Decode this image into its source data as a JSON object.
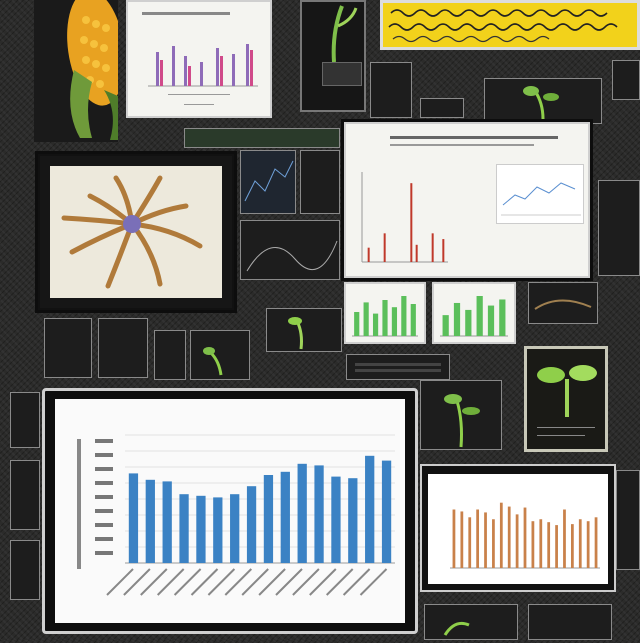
{
  "screen": {
    "background": "#2b2b2a",
    "accent_green": "#5bbf5b",
    "accent_blue": "#3b82c4",
    "accent_orange": "#c9814a",
    "accent_red": "#c0392b",
    "accent_yellow": "#f2d21b"
  },
  "title_card": {
    "title": ""
  },
  "main_chart": {
    "title": "",
    "xlabel": ""
  },
  "chart_data": [
    {
      "type": "bar",
      "categories": [
        "1",
        "2",
        "3",
        "4",
        "5",
        "6",
        "7",
        "8",
        "9",
        "10",
        "11",
        "12",
        "13",
        "14",
        "15",
        "16"
      ],
      "values": [
        56,
        52,
        51,
        43,
        42,
        41,
        43,
        48,
        55,
        57,
        62,
        61,
        54,
        53,
        67,
        64
      ],
      "ylim": [
        0,
        80
      ],
      "grid": true,
      "color": "#3b82c4"
    },
    {
      "type": "bar",
      "values": [
        60,
        58,
        52,
        60,
        57,
        50,
        67,
        63,
        55,
        62,
        48,
        50,
        47,
        44,
        60,
        45,
        50,
        48,
        52
      ],
      "ylim": [
        0,
        80
      ],
      "color": "#c9814a"
    },
    {
      "type": "bar",
      "values": [
        10,
        0,
        0,
        20,
        0,
        0,
        0,
        0,
        55,
        12,
        0,
        0,
        20,
        0,
        16
      ],
      "ylim": [
        0,
        60
      ],
      "color": "#c0392b"
    },
    {
      "type": "bar",
      "values": [
        30,
        42,
        28,
        45,
        36,
        50,
        40
      ],
      "color": "#5bbf5b"
    },
    {
      "type": "bar",
      "values": [
        24,
        38,
        30,
        46,
        35,
        42
      ],
      "color": "#5bbf5b"
    }
  ]
}
